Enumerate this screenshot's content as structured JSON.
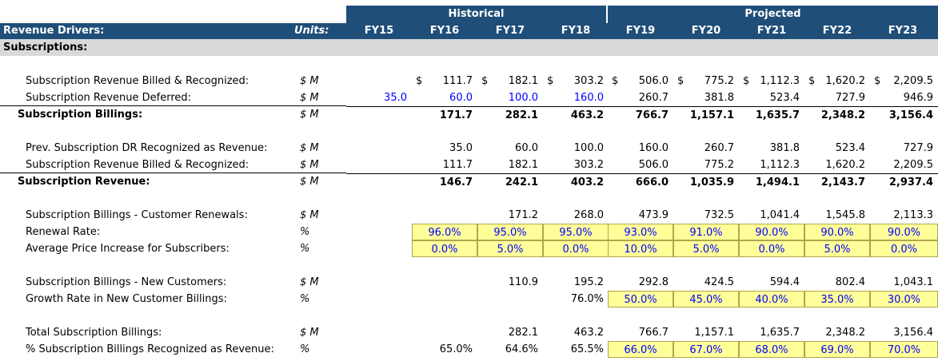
{
  "groups": {
    "historical": "Historical",
    "projected": "Projected"
  },
  "header": {
    "label": "Revenue Drivers:",
    "units": "Units:",
    "years": [
      "FY15",
      "FY16",
      "FY17",
      "FY18",
      "FY19",
      "FY20",
      "FY21",
      "FY22",
      "FY23"
    ]
  },
  "section": "Subscriptions:",
  "rows": [
    {
      "label": "Subscription Revenue Billed & Recognized:",
      "unit": "$ M",
      "values": [
        "",
        "111.7",
        "182.1",
        "303.2",
        "506.0",
        "775.2",
        "1,112.3",
        "1,620.2",
        "2,209.5"
      ],
      "dollar": [
        false,
        true,
        true,
        true,
        true,
        true,
        true,
        true,
        true
      ]
    },
    {
      "label": "Subscription Revenue Deferred:",
      "unit": "$ M",
      "values": [
        "35.0",
        "60.0",
        "100.0",
        "160.0",
        "260.7",
        "381.8",
        "523.4",
        "727.9",
        "946.9"
      ]
    },
    {
      "label": "Subscription Billings:",
      "unit": "$ M",
      "values": [
        "",
        "171.7",
        "282.1",
        "463.2",
        "766.7",
        "1,157.1",
        "1,635.7",
        "2,348.2",
        "3,156.4"
      ]
    },
    {
      "label": "Prev. Subscription DR Recognized as Revenue:",
      "unit": "$ M",
      "values": [
        "",
        "35.0",
        "60.0",
        "100.0",
        "160.0",
        "260.7",
        "381.8",
        "523.4",
        "727.9"
      ]
    },
    {
      "label": "Subscription Revenue Billed & Recognized:",
      "unit": "$ M",
      "values": [
        "",
        "111.7",
        "182.1",
        "303.2",
        "506.0",
        "775.2",
        "1,112.3",
        "1,620.2",
        "2,209.5"
      ]
    },
    {
      "label": "Subscription Revenue:",
      "unit": "$ M",
      "values": [
        "",
        "146.7",
        "242.1",
        "403.2",
        "666.0",
        "1,035.9",
        "1,494.1",
        "2,143.7",
        "2,937.4"
      ]
    },
    {
      "label": "Subscription Billings - Customer Renewals:",
      "unit": "$ M",
      "values": [
        "",
        "",
        "171.2",
        "268.0",
        "473.9",
        "732.5",
        "1,041.4",
        "1,545.8",
        "2,113.3"
      ]
    },
    {
      "label": "Renewal Rate:",
      "unit": "%",
      "values": [
        "",
        "96.0%",
        "95.0%",
        "95.0%",
        "93.0%",
        "91.0%",
        "90.0%",
        "90.0%",
        "90.0%"
      ]
    },
    {
      "label": "Average Price Increase for Subscribers:",
      "unit": "%",
      "values": [
        "",
        "0.0%",
        "5.0%",
        "0.0%",
        "10.0%",
        "5.0%",
        "0.0%",
        "5.0%",
        "0.0%"
      ]
    },
    {
      "label": "Subscription Billings - New Customers:",
      "unit": "$ M",
      "values": [
        "",
        "",
        "110.9",
        "195.2",
        "292.8",
        "424.5",
        "594.4",
        "802.4",
        "1,043.1"
      ]
    },
    {
      "label": "Growth Rate in New Customer Billings:",
      "unit": "%",
      "values": [
        "",
        "",
        "",
        "76.0%",
        "50.0%",
        "45.0%",
        "40.0%",
        "35.0%",
        "30.0%"
      ]
    },
    {
      "label": "Total Subscription Billings:",
      "unit": "$ M",
      "values": [
        "",
        "",
        "282.1",
        "463.2",
        "766.7",
        "1,157.1",
        "1,635.7",
        "2,348.2",
        "3,156.4"
      ]
    },
    {
      "label": "% Subscription Billings Recognized as Revenue:",
      "unit": "%",
      "values": [
        "",
        "65.0%",
        "64.6%",
        "65.5%",
        "66.0%",
        "67.0%",
        "68.0%",
        "69.0%",
        "70.0%"
      ]
    }
  ],
  "currency_symbol": "$",
  "colors": {
    "header_bg": "#1f4e79",
    "section_bg": "#d9d9d9",
    "input_fill": "#ffff99",
    "input_text": "#0000ff"
  }
}
